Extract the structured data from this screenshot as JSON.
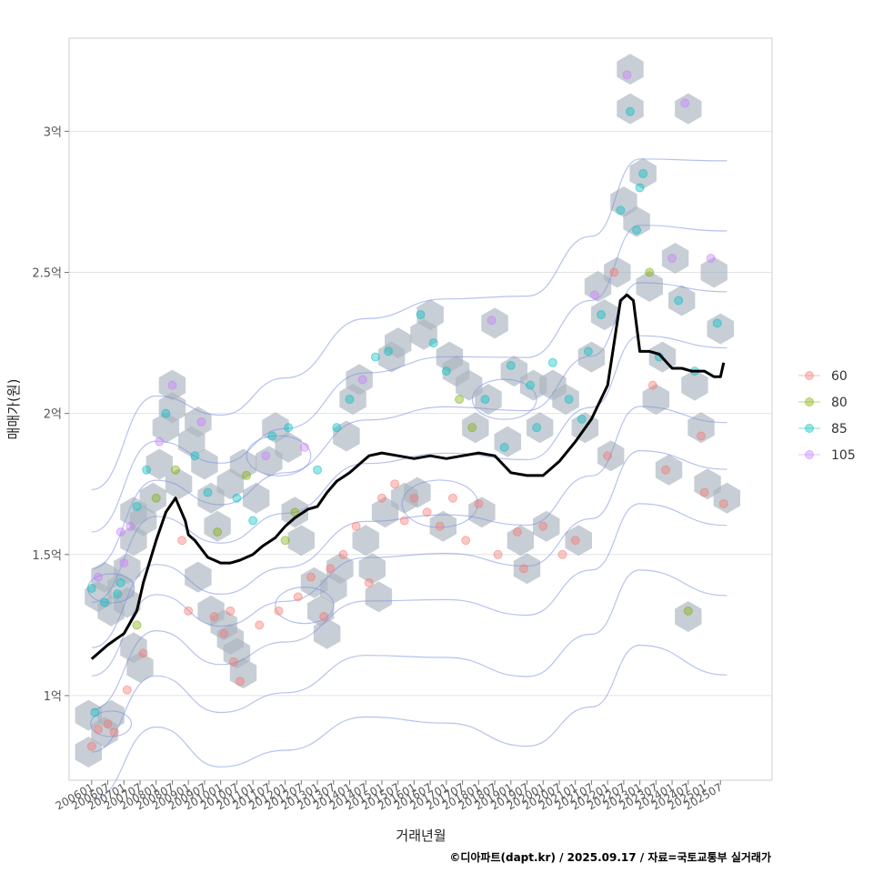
{
  "chart_data": {
    "type": "scatter",
    "title": "",
    "xlabel": "거래년월",
    "ylabel": "매매가(원)",
    "caption": "©디아파트(dapt.kr) / 2025.09.17 / 자료=국토교통부 실거래가",
    "y_ticks": [
      {
        "value": 1.0,
        "label": "1억"
      },
      {
        "value": 1.5,
        "label": "1.5억"
      },
      {
        "value": 2.0,
        "label": "2억"
      },
      {
        "value": 2.5,
        "label": "2.5억"
      },
      {
        "value": 3.0,
        "label": "3억"
      }
    ],
    "ylim": [
      0.7,
      3.33
    ],
    "xlim": [
      2005.3,
      2027.1
    ],
    "x_tick_labels": [
      "200601",
      "200607",
      "200701",
      "200707",
      "200801",
      "200807",
      "200901",
      "200907",
      "201001",
      "201007",
      "201101",
      "201107",
      "201201",
      "201207",
      "201301",
      "201307",
      "201401",
      "201407",
      "201501",
      "201507",
      "201601",
      "201607",
      "201701",
      "201707",
      "201801",
      "201807",
      "201901",
      "201907",
      "202001",
      "202007",
      "202101",
      "202107",
      "202201",
      "202207",
      "202301",
      "202307",
      "202401",
      "202407",
      "202501",
      "202507"
    ],
    "legend": [
      {
        "label": "60",
        "color": "#F8766D"
      },
      {
        "label": "80",
        "color": "#7CAE00"
      },
      {
        "label": "85",
        "color": "#00BFC4"
      },
      {
        "label": "105",
        "color": "#C77CFF"
      }
    ],
    "hexbin_color": "#aab4be",
    "contour_color": "#7b8fe0",
    "median_line": {
      "name": "monthly median",
      "color": "#000000",
      "x": [
        2006.0,
        2006.5,
        2007.0,
        2007.4,
        2007.6,
        2008.0,
        2008.3,
        2008.6,
        2008.9,
        2009.0,
        2009.2,
        2009.6,
        2010.0,
        2010.3,
        2010.6,
        2011.0,
        2011.3,
        2011.7,
        2012.0,
        2012.3,
        2012.7,
        2013.0,
        2013.3,
        2013.6,
        2014.0,
        2014.3,
        2014.6,
        2015.0,
        2015.5,
        2016.0,
        2016.5,
        2017.0,
        2017.5,
        2018.0,
        2018.5,
        2019.0,
        2019.5,
        2020.0,
        2020.5,
        2021.0,
        2021.5,
        2022.0,
        2022.2,
        2022.4,
        2022.6,
        2022.8,
        2023.0,
        2023.3,
        2023.6,
        2024.0,
        2024.3,
        2024.6,
        2025.0,
        2025.3,
        2025.5,
        2025.6
      ],
      "y": [
        1.13,
        1.18,
        1.22,
        1.3,
        1.4,
        1.55,
        1.65,
        1.7,
        1.62,
        1.57,
        1.55,
        1.49,
        1.47,
        1.47,
        1.48,
        1.5,
        1.53,
        1.56,
        1.6,
        1.63,
        1.66,
        1.67,
        1.72,
        1.76,
        1.79,
        1.82,
        1.85,
        1.86,
        1.85,
        1.84,
        1.85,
        1.84,
        1.85,
        1.86,
        1.85,
        1.79,
        1.78,
        1.78,
        1.83,
        1.9,
        1.98,
        2.1,
        2.25,
        2.4,
        2.42,
        2.4,
        2.22,
        2.22,
        2.21,
        2.16,
        2.16,
        2.15,
        2.15,
        2.13,
        2.13,
        2.18
      ]
    },
    "hexbins": [
      [
        2005.9,
        0.8
      ],
      [
        2005.9,
        0.93
      ],
      [
        2006.4,
        0.87
      ],
      [
        2006.6,
        0.93
      ],
      [
        2006.2,
        1.35
      ],
      [
        2006.4,
        1.42
      ],
      [
        2006.6,
        1.3
      ],
      [
        2006.9,
        1.38
      ],
      [
        2007.1,
        1.45
      ],
      [
        2007.1,
        1.33
      ],
      [
        2007.3,
        1.17
      ],
      [
        2007.5,
        1.1
      ],
      [
        2007.3,
        1.55
      ],
      [
        2007.3,
        1.65
      ],
      [
        2007.6,
        1.62
      ],
      [
        2007.9,
        1.7
      ],
      [
        2008.1,
        1.82
      ],
      [
        2008.3,
        1.95
      ],
      [
        2008.5,
        2.02
      ],
      [
        2008.5,
        2.1
      ],
      [
        2008.7,
        1.75
      ],
      [
        2009.1,
        1.9
      ],
      [
        2009.3,
        1.97
      ],
      [
        2009.5,
        1.82
      ],
      [
        2009.7,
        1.7
      ],
      [
        2009.9,
        1.6
      ],
      [
        2009.3,
        1.42
      ],
      [
        2009.7,
        1.3
      ],
      [
        2010.1,
        1.25
      ],
      [
        2010.3,
        1.2
      ],
      [
        2010.5,
        1.15
      ],
      [
        2010.7,
        1.08
      ],
      [
        2010.3,
        1.75
      ],
      [
        2010.7,
        1.82
      ],
      [
        2011.1,
        1.7
      ],
      [
        2011.5,
        1.83
      ],
      [
        2011.7,
        1.95
      ],
      [
        2012.1,
        1.88
      ],
      [
        2012.3,
        1.65
      ],
      [
        2012.5,
        1.55
      ],
      [
        2012.9,
        1.4
      ],
      [
        2013.1,
        1.3
      ],
      [
        2013.3,
        1.22
      ],
      [
        2013.5,
        1.38
      ],
      [
        2013.7,
        1.45
      ],
      [
        2013.9,
        1.92
      ],
      [
        2014.1,
        2.05
      ],
      [
        2014.3,
        2.12
      ],
      [
        2014.5,
        1.55
      ],
      [
        2014.7,
        1.45
      ],
      [
        2014.9,
        1.35
      ],
      [
        2015.1,
        1.65
      ],
      [
        2015.3,
        2.2
      ],
      [
        2015.5,
        2.25
      ],
      [
        2015.7,
        1.7
      ],
      [
        2016.1,
        1.72
      ],
      [
        2016.3,
        2.28
      ],
      [
        2016.5,
        2.35
      ],
      [
        2016.9,
        1.6
      ],
      [
        2017.1,
        2.2
      ],
      [
        2017.3,
        2.15
      ],
      [
        2017.7,
        2.1
      ],
      [
        2017.9,
        1.95
      ],
      [
        2018.1,
        1.65
      ],
      [
        2018.3,
        2.05
      ],
      [
        2018.5,
        2.32
      ],
      [
        2018.9,
        1.9
      ],
      [
        2019.1,
        2.15
      ],
      [
        2019.3,
        1.55
      ],
      [
        2019.5,
        1.45
      ],
      [
        2019.7,
        2.1
      ],
      [
        2019.9,
        1.95
      ],
      [
        2020.1,
        1.6
      ],
      [
        2020.3,
        2.1
      ],
      [
        2020.7,
        2.05
      ],
      [
        2021.1,
        1.55
      ],
      [
        2021.3,
        1.95
      ],
      [
        2021.5,
        2.2
      ],
      [
        2021.7,
        2.45
      ],
      [
        2021.9,
        2.35
      ],
      [
        2022.1,
        1.85
      ],
      [
        2022.3,
        2.5
      ],
      [
        2022.5,
        2.75
      ],
      [
        2022.7,
        3.22
      ],
      [
        2022.7,
        3.08
      ],
      [
        2022.9,
        2.68
      ],
      [
        2023.1,
        2.85
      ],
      [
        2023.3,
        2.45
      ],
      [
        2023.5,
        2.05
      ],
      [
        2023.7,
        2.2
      ],
      [
        2023.9,
        1.8
      ],
      [
        2024.1,
        2.55
      ],
      [
        2024.3,
        2.4
      ],
      [
        2024.5,
        3.08
      ],
      [
        2024.5,
        1.28
      ],
      [
        2024.7,
        2.1
      ],
      [
        2024.9,
        1.95
      ],
      [
        2025.1,
        1.75
      ],
      [
        2025.3,
        2.5
      ],
      [
        2025.5,
        2.3
      ],
      [
        2025.7,
        1.7
      ]
    ],
    "points": [
      {
        "x": 2006.0,
        "y": 0.82,
        "s": 0
      },
      {
        "x": 2006.2,
        "y": 0.88,
        "s": 0
      },
      {
        "x": 2006.5,
        "y": 0.9,
        "s": 0
      },
      {
        "x": 2006.7,
        "y": 0.87,
        "s": 0
      },
      {
        "x": 2006.1,
        "y": 0.94,
        "s": 2
      },
      {
        "x": 2006.0,
        "y": 1.38,
        "s": 2
      },
      {
        "x": 2006.2,
        "y": 1.42,
        "s": 3
      },
      {
        "x": 2006.4,
        "y": 1.33,
        "s": 2
      },
      {
        "x": 2006.8,
        "y": 1.36,
        "s": 2
      },
      {
        "x": 2006.9,
        "y": 1.4,
        "s": 2
      },
      {
        "x": 2007.0,
        "y": 1.47,
        "s": 3
      },
      {
        "x": 2006.9,
        "y": 1.58,
        "s": 3
      },
      {
        "x": 2007.2,
        "y": 1.6,
        "s": 3
      },
      {
        "x": 2007.1,
        "y": 1.02,
        "s": 0
      },
      {
        "x": 2007.4,
        "y": 1.25,
        "s": 1
      },
      {
        "x": 2007.6,
        "y": 1.15,
        "s": 0
      },
      {
        "x": 2007.4,
        "y": 1.67,
        "s": 2
      },
      {
        "x": 2007.7,
        "y": 1.8,
        "s": 2
      },
      {
        "x": 2008.0,
        "y": 1.7,
        "s": 1
      },
      {
        "x": 2008.1,
        "y": 1.9,
        "s": 3
      },
      {
        "x": 2008.3,
        "y": 2.0,
        "s": 2
      },
      {
        "x": 2008.5,
        "y": 2.1,
        "s": 3
      },
      {
        "x": 2008.6,
        "y": 1.8,
        "s": 1
      },
      {
        "x": 2008.8,
        "y": 1.55,
        "s": 0
      },
      {
        "x": 2009.0,
        "y": 1.3,
        "s": 0
      },
      {
        "x": 2009.2,
        "y": 1.85,
        "s": 2
      },
      {
        "x": 2009.4,
        "y": 1.97,
        "s": 3
      },
      {
        "x": 2009.6,
        "y": 1.72,
        "s": 2
      },
      {
        "x": 2009.8,
        "y": 1.28,
        "s": 0
      },
      {
        "x": 2009.9,
        "y": 1.58,
        "s": 1
      },
      {
        "x": 2010.1,
        "y": 1.22,
        "s": 0
      },
      {
        "x": 2010.3,
        "y": 1.3,
        "s": 0
      },
      {
        "x": 2010.4,
        "y": 1.12,
        "s": 0
      },
      {
        "x": 2010.6,
        "y": 1.05,
        "s": 0
      },
      {
        "x": 2010.5,
        "y": 1.7,
        "s": 2
      },
      {
        "x": 2010.8,
        "y": 1.78,
        "s": 1
      },
      {
        "x": 2011.0,
        "y": 1.62,
        "s": 2
      },
      {
        "x": 2011.2,
        "y": 1.25,
        "s": 0
      },
      {
        "x": 2011.4,
        "y": 1.85,
        "s": 3
      },
      {
        "x": 2011.6,
        "y": 1.92,
        "s": 2
      },
      {
        "x": 2011.8,
        "y": 1.3,
        "s": 0
      },
      {
        "x": 2012.0,
        "y": 1.55,
        "s": 1
      },
      {
        "x": 2012.1,
        "y": 1.95,
        "s": 2
      },
      {
        "x": 2012.3,
        "y": 1.65,
        "s": 1
      },
      {
        "x": 2012.4,
        "y": 1.35,
        "s": 0
      },
      {
        "x": 2012.6,
        "y": 1.88,
        "s": 3
      },
      {
        "x": 2012.8,
        "y": 1.42,
        "s": 0
      },
      {
        "x": 2013.0,
        "y": 1.8,
        "s": 2
      },
      {
        "x": 2013.2,
        "y": 1.28,
        "s": 0
      },
      {
        "x": 2013.4,
        "y": 1.45,
        "s": 0
      },
      {
        "x": 2013.6,
        "y": 1.95,
        "s": 2
      },
      {
        "x": 2013.8,
        "y": 1.5,
        "s": 0
      },
      {
        "x": 2014.0,
        "y": 2.05,
        "s": 2
      },
      {
        "x": 2014.2,
        "y": 1.6,
        "s": 0
      },
      {
        "x": 2014.4,
        "y": 2.12,
        "s": 3
      },
      {
        "x": 2014.6,
        "y": 1.4,
        "s": 0
      },
      {
        "x": 2014.8,
        "y": 2.2,
        "s": 2
      },
      {
        "x": 2015.0,
        "y": 1.7,
        "s": 0
      },
      {
        "x": 2015.2,
        "y": 2.22,
        "s": 2
      },
      {
        "x": 2015.4,
        "y": 1.75,
        "s": 0
      },
      {
        "x": 2015.7,
        "y": 1.62,
        "s": 0
      },
      {
        "x": 2016.0,
        "y": 1.7,
        "s": 0
      },
      {
        "x": 2016.2,
        "y": 2.35,
        "s": 2
      },
      {
        "x": 2016.4,
        "y": 1.65,
        "s": 0
      },
      {
        "x": 2016.6,
        "y": 2.25,
        "s": 2
      },
      {
        "x": 2016.8,
        "y": 1.6,
        "s": 0
      },
      {
        "x": 2017.0,
        "y": 2.15,
        "s": 2
      },
      {
        "x": 2017.2,
        "y": 1.7,
        "s": 0
      },
      {
        "x": 2017.4,
        "y": 2.05,
        "s": 1
      },
      {
        "x": 2017.6,
        "y": 1.55,
        "s": 0
      },
      {
        "x": 2017.8,
        "y": 1.95,
        "s": 1
      },
      {
        "x": 2018.0,
        "y": 1.68,
        "s": 0
      },
      {
        "x": 2018.2,
        "y": 2.05,
        "s": 2
      },
      {
        "x": 2018.4,
        "y": 2.33,
        "s": 3
      },
      {
        "x": 2018.6,
        "y": 1.5,
        "s": 0
      },
      {
        "x": 2018.8,
        "y": 1.88,
        "s": 2
      },
      {
        "x": 2019.0,
        "y": 2.17,
        "s": 2
      },
      {
        "x": 2019.2,
        "y": 1.58,
        "s": 0
      },
      {
        "x": 2019.4,
        "y": 1.45,
        "s": 0
      },
      {
        "x": 2019.6,
        "y": 2.1,
        "s": 2
      },
      {
        "x": 2019.8,
        "y": 1.95,
        "s": 2
      },
      {
        "x": 2020.0,
        "y": 1.6,
        "s": 0
      },
      {
        "x": 2020.3,
        "y": 2.18,
        "s": 2
      },
      {
        "x": 2020.6,
        "y": 1.5,
        "s": 0
      },
      {
        "x": 2020.8,
        "y": 2.05,
        "s": 2
      },
      {
        "x": 2021.0,
        "y": 1.55,
        "s": 0
      },
      {
        "x": 2021.2,
        "y": 1.98,
        "s": 2
      },
      {
        "x": 2021.4,
        "y": 2.22,
        "s": 2
      },
      {
        "x": 2021.6,
        "y": 2.42,
        "s": 3
      },
      {
        "x": 2021.8,
        "y": 2.35,
        "s": 2
      },
      {
        "x": 2022.0,
        "y": 1.85,
        "s": 0
      },
      {
        "x": 2022.2,
        "y": 2.5,
        "s": 0
      },
      {
        "x": 2022.4,
        "y": 2.72,
        "s": 2
      },
      {
        "x": 2022.6,
        "y": 3.2,
        "s": 3
      },
      {
        "x": 2022.7,
        "y": 3.07,
        "s": 2
      },
      {
        "x": 2022.9,
        "y": 2.65,
        "s": 2
      },
      {
        "x": 2023.0,
        "y": 2.8,
        "s": 2
      },
      {
        "x": 2023.1,
        "y": 2.85,
        "s": 2
      },
      {
        "x": 2023.3,
        "y": 2.5,
        "s": 1
      },
      {
        "x": 2023.4,
        "y": 2.1,
        "s": 0
      },
      {
        "x": 2023.6,
        "y": 2.2,
        "s": 2
      },
      {
        "x": 2023.8,
        "y": 1.8,
        "s": 0
      },
      {
        "x": 2024.0,
        "y": 2.55,
        "s": 3
      },
      {
        "x": 2024.2,
        "y": 2.4,
        "s": 2
      },
      {
        "x": 2024.4,
        "y": 3.1,
        "s": 3
      },
      {
        "x": 2024.5,
        "y": 1.3,
        "s": 1
      },
      {
        "x": 2024.7,
        "y": 2.15,
        "s": 2
      },
      {
        "x": 2024.9,
        "y": 1.92,
        "s": 0
      },
      {
        "x": 2025.0,
        "y": 1.72,
        "s": 0
      },
      {
        "x": 2025.2,
        "y": 2.55,
        "s": 3
      },
      {
        "x": 2025.4,
        "y": 2.32,
        "s": 2
      },
      {
        "x": 2025.6,
        "y": 1.68,
        "s": 0
      }
    ]
  }
}
